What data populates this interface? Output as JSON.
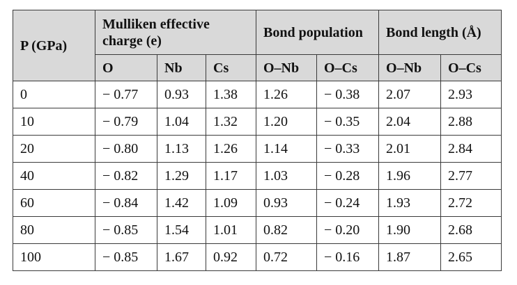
{
  "table": {
    "header_top": {
      "pressure": "P (GPa)",
      "mulliken": "Mulliken effective charge (e)",
      "bond_population": "Bond population",
      "bond_length": "Bond length (Å)"
    },
    "header_sub": [
      "O",
      "Nb",
      "Cs",
      "O–Nb",
      "O–Cs",
      "O–Nb",
      "O–Cs"
    ],
    "rows": [
      [
        "0",
        "− 0.77",
        "0.93",
        "1.38",
        "1.26",
        "− 0.38",
        "2.07",
        "2.93"
      ],
      [
        "10",
        "− 0.79",
        "1.04",
        "1.32",
        "1.20",
        "− 0.35",
        "2.04",
        "2.88"
      ],
      [
        "20",
        "− 0.80",
        "1.13",
        "1.26",
        "1.14",
        "− 0.33",
        "2.01",
        "2.84"
      ],
      [
        "40",
        "− 0.82",
        "1.29",
        "1.17",
        "1.03",
        "− 0.28",
        "1.96",
        "2.77"
      ],
      [
        "60",
        "− 0.84",
        "1.42",
        "1.09",
        "0.93",
        "− 0.24",
        "1.93",
        "2.72"
      ],
      [
        "80",
        "− 0.85",
        "1.54",
        "1.01",
        "0.82",
        "− 0.20",
        "1.90",
        "2.68"
      ],
      [
        "100",
        "− 0.85",
        "1.67",
        "0.92",
        "0.72",
        "− 0.16",
        "1.87",
        "2.65"
      ]
    ]
  }
}
